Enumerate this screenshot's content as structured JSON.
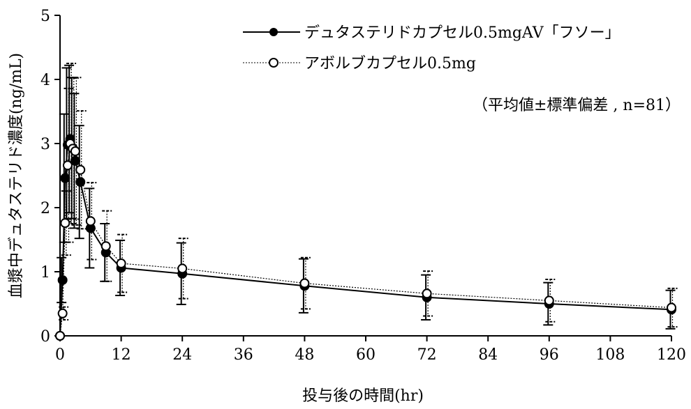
{
  "chart_data": {
    "type": "line",
    "xlabel": "投与後の時間(hr)",
    "ylabel": "血漿中デュタステリド濃度(ng/mL)",
    "xlim": [
      0,
      120
    ],
    "ylim": [
      0,
      5
    ],
    "xticks": [
      0,
      12,
      24,
      36,
      48,
      60,
      72,
      84,
      96,
      108,
      120
    ],
    "yticks": [
      0,
      1,
      2,
      3,
      4,
      5
    ],
    "annotation": "（平均値±標準偏差 , n=81）",
    "legend_position": "top-right",
    "series": [
      {
        "name": "デュタステリドカプセル0.5mgAV「フソー」",
        "marker": "filled-circle",
        "line": "solid",
        "color": "#000000",
        "x": [
          0,
          0.5,
          1,
          1.5,
          2,
          2.5,
          3,
          4,
          6,
          9,
          12,
          24,
          48,
          72,
          96,
          120
        ],
        "y": [
          0,
          0.87,
          2.46,
          2.98,
          3.07,
          2.93,
          2.73,
          2.4,
          1.68,
          1.3,
          1.06,
          0.97,
          0.78,
          0.6,
          0.5,
          0.41
        ],
        "sd": [
          0,
          0.35,
          1.0,
          1.2,
          1.15,
          1.1,
          1.05,
          0.88,
          0.62,
          0.45,
          0.43,
          0.48,
          0.42,
          0.35,
          0.33,
          0.3
        ]
      },
      {
        "name": "アボルブカプセル0.5mg",
        "marker": "open-circle",
        "line": "dotted",
        "color": "#000000",
        "x": [
          0,
          0.5,
          1,
          1.5,
          2,
          2.5,
          3,
          4,
          6,
          9,
          12,
          24,
          48,
          72,
          96,
          120
        ],
        "y": [
          0,
          0.35,
          1.76,
          2.66,
          3.0,
          2.92,
          2.88,
          2.59,
          1.79,
          1.4,
          1.13,
          1.05,
          0.82,
          0.66,
          0.55,
          0.44
        ],
        "sd": [
          0,
          0.1,
          0.5,
          1.2,
          1.25,
          1.1,
          1.15,
          0.92,
          0.6,
          0.55,
          0.45,
          0.47,
          0.4,
          0.35,
          0.33,
          0.3
        ]
      }
    ]
  }
}
